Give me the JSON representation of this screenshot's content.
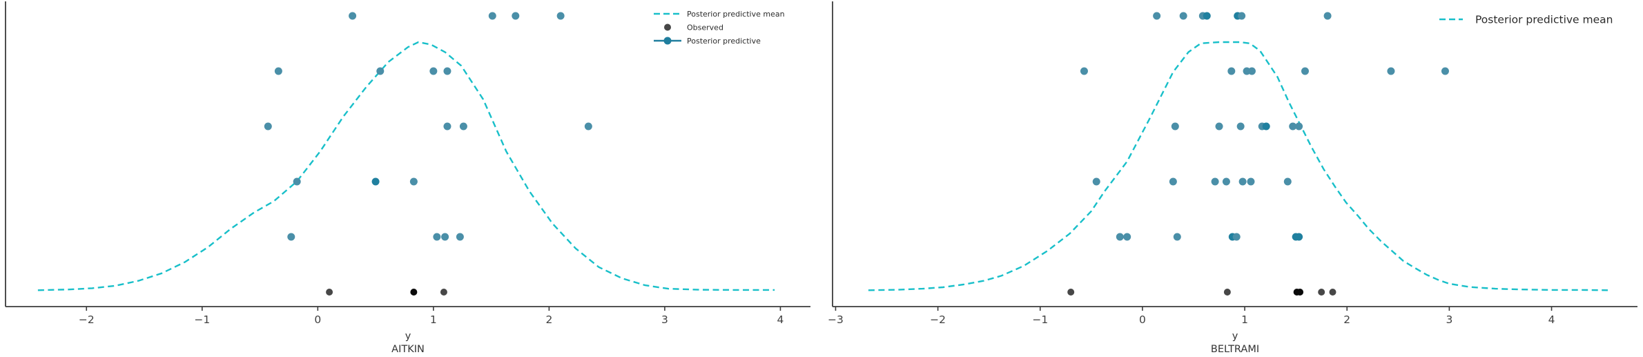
{
  "figure": {
    "background": "#ffffff",
    "description": "Posterior predictive check scatter plots for two groups"
  },
  "colors": {
    "mean_line": "#18bfc9",
    "pp_point": "#4a8fa8",
    "pp_point_overlap": "#20809f",
    "observed_point": "#474747",
    "observed_point_overlap": "#0a0a0a",
    "legend_line_dot": "#1f7e9e",
    "spine": "#3a3a3a",
    "tick_label": "#404040",
    "axis_label": "#333333",
    "legend_text": "#2b2b2b"
  },
  "chart_data": [
    {
      "type": "scatter",
      "panel": "AITKIN",
      "xlabel": "y",
      "xlim": [
        -2.7,
        4.26
      ],
      "xticks": [
        -2,
        -1,
        0,
        1,
        2,
        3,
        4
      ],
      "grid": false,
      "legend_position": "upper right",
      "legend": [
        {
          "label": "Posterior predictive mean",
          "marker": "dashed-line"
        },
        {
          "label": "Observed",
          "marker": "dot"
        },
        {
          "label": "Posterior predictive",
          "marker": "line-dot"
        }
      ],
      "posterior_predictive_rows": [
        [
          [
            0.3,
            1
          ],
          [
            1.51,
            1
          ],
          [
            1.71,
            1
          ],
          [
            2.1,
            1
          ]
        ],
        [
          [
            -0.34,
            1
          ],
          [
            0.54,
            1
          ],
          [
            1.0,
            1
          ],
          [
            1.12,
            1
          ]
        ],
        [
          [
            -0.43,
            1
          ],
          [
            1.12,
            1
          ],
          [
            1.26,
            1
          ],
          [
            2.34,
            1
          ]
        ],
        [
          [
            -0.18,
            1
          ],
          [
            0.5,
            2
          ],
          [
            0.83,
            1
          ]
        ],
        [
          [
            -0.23,
            1
          ],
          [
            1.03,
            1
          ],
          [
            1.1,
            1
          ],
          [
            1.23,
            1
          ]
        ]
      ],
      "observed": [
        [
          0.1,
          1
        ],
        [
          0.83,
          2
        ],
        [
          1.09,
          1
        ]
      ],
      "mean_curve": [
        [
          -2.42,
          0.002
        ],
        [
          -2.15,
          0.005
        ],
        [
          -1.95,
          0.01
        ],
        [
          -1.75,
          0.02
        ],
        [
          -1.55,
          0.04
        ],
        [
          -1.35,
          0.07
        ],
        [
          -1.15,
          0.115
        ],
        [
          -0.95,
          0.175
        ],
        [
          -0.75,
          0.25
        ],
        [
          -0.55,
          0.315
        ],
        [
          -0.38,
          0.36
        ],
        [
          -0.18,
          0.44
        ],
        [
          0.02,
          0.56
        ],
        [
          0.22,
          0.7
        ],
        [
          0.42,
          0.82
        ],
        [
          0.61,
          0.92
        ],
        [
          0.78,
          0.98
        ],
        [
          0.87,
          1.0
        ],
        [
          0.98,
          0.99
        ],
        [
          1.1,
          0.96
        ],
        [
          1.24,
          0.905
        ],
        [
          1.43,
          0.77
        ],
        [
          1.63,
          0.56
        ],
        [
          1.83,
          0.4
        ],
        [
          2.03,
          0.27
        ],
        [
          2.23,
          0.17
        ],
        [
          2.43,
          0.095
        ],
        [
          2.63,
          0.05
        ],
        [
          2.83,
          0.022
        ],
        [
          3.03,
          0.008
        ],
        [
          3.3,
          0.004
        ],
        [
          3.6,
          0.003
        ],
        [
          3.95,
          0.003
        ]
      ]
    },
    {
      "type": "scatter",
      "panel": "BELTRAMI",
      "xlabel": "y",
      "xlim": [
        -3.03,
        4.84
      ],
      "xticks": [
        -3,
        -2,
        -1,
        0,
        1,
        2,
        3,
        4
      ],
      "grid": false,
      "legend_position": "upper right",
      "legend": [
        {
          "label": "Posterior predictive mean",
          "marker": "dashed-line"
        }
      ],
      "posterior_predictive_rows": [
        [
          [
            0.14,
            1
          ],
          [
            0.4,
            1
          ],
          [
            0.59,
            1
          ],
          [
            0.63,
            2
          ],
          [
            0.93,
            2
          ],
          [
            0.97,
            1
          ],
          [
            1.81,
            1
          ]
        ],
        [
          [
            -0.57,
            1
          ],
          [
            0.87,
            1
          ],
          [
            1.02,
            1
          ],
          [
            1.07,
            1
          ],
          [
            1.59,
            1
          ],
          [
            2.43,
            1
          ],
          [
            2.96,
            1
          ]
        ],
        [
          [
            0.32,
            1
          ],
          [
            0.75,
            1
          ],
          [
            0.96,
            1
          ],
          [
            1.17,
            1
          ],
          [
            1.21,
            2
          ],
          [
            1.47,
            1
          ],
          [
            1.53,
            1
          ]
        ],
        [
          [
            -0.45,
            1
          ],
          [
            0.3,
            1
          ],
          [
            0.71,
            1
          ],
          [
            0.82,
            1
          ],
          [
            0.98,
            1
          ],
          [
            1.06,
            1
          ],
          [
            1.42,
            1
          ]
        ],
        [
          [
            -0.22,
            1
          ],
          [
            -0.15,
            1
          ],
          [
            0.34,
            1
          ],
          [
            0.88,
            2
          ],
          [
            0.92,
            1
          ],
          [
            1.5,
            2
          ],
          [
            1.53,
            2
          ]
        ]
      ],
      "observed": [
        [
          -0.7,
          1
        ],
        [
          0.83,
          1
        ],
        [
          1.51,
          2
        ],
        [
          1.54,
          2
        ],
        [
          1.75,
          1
        ],
        [
          1.86,
          1
        ]
      ],
      "mean_curve": [
        [
          -2.68,
          0.002
        ],
        [
          -2.4,
          0.004
        ],
        [
          -2.15,
          0.008
        ],
        [
          -1.95,
          0.014
        ],
        [
          -1.75,
          0.025
        ],
        [
          -1.55,
          0.04
        ],
        [
          -1.38,
          0.06
        ],
        [
          -1.16,
          0.1
        ],
        [
          -0.93,
          0.16
        ],
        [
          -0.71,
          0.23
        ],
        [
          -0.5,
          0.32
        ],
        [
          -0.37,
          0.4
        ],
        [
          -0.15,
          0.52
        ],
        [
          0.08,
          0.7
        ],
        [
          0.3,
          0.88
        ],
        [
          0.45,
          0.96
        ],
        [
          0.57,
          0.995
        ],
        [
          0.75,
          1.0
        ],
        [
          0.95,
          1.0
        ],
        [
          1.05,
          0.995
        ],
        [
          1.15,
          0.965
        ],
        [
          1.32,
          0.86
        ],
        [
          1.43,
          0.76
        ],
        [
          1.54,
          0.67
        ],
        [
          1.65,
          0.58
        ],
        [
          1.77,
          0.49
        ],
        [
          1.88,
          0.42
        ],
        [
          1.99,
          0.355
        ],
        [
          2.11,
          0.3
        ],
        [
          2.21,
          0.25
        ],
        [
          2.33,
          0.2
        ],
        [
          2.44,
          0.16
        ],
        [
          2.55,
          0.12
        ],
        [
          2.67,
          0.09
        ],
        [
          2.78,
          0.064
        ],
        [
          2.89,
          0.044
        ],
        [
          3.0,
          0.028
        ],
        [
          3.2,
          0.015
        ],
        [
          3.45,
          0.008
        ],
        [
          3.7,
          0.005
        ],
        [
          4.0,
          0.003
        ],
        [
          4.3,
          0.003
        ],
        [
          4.55,
          0.002
        ]
      ]
    }
  ]
}
